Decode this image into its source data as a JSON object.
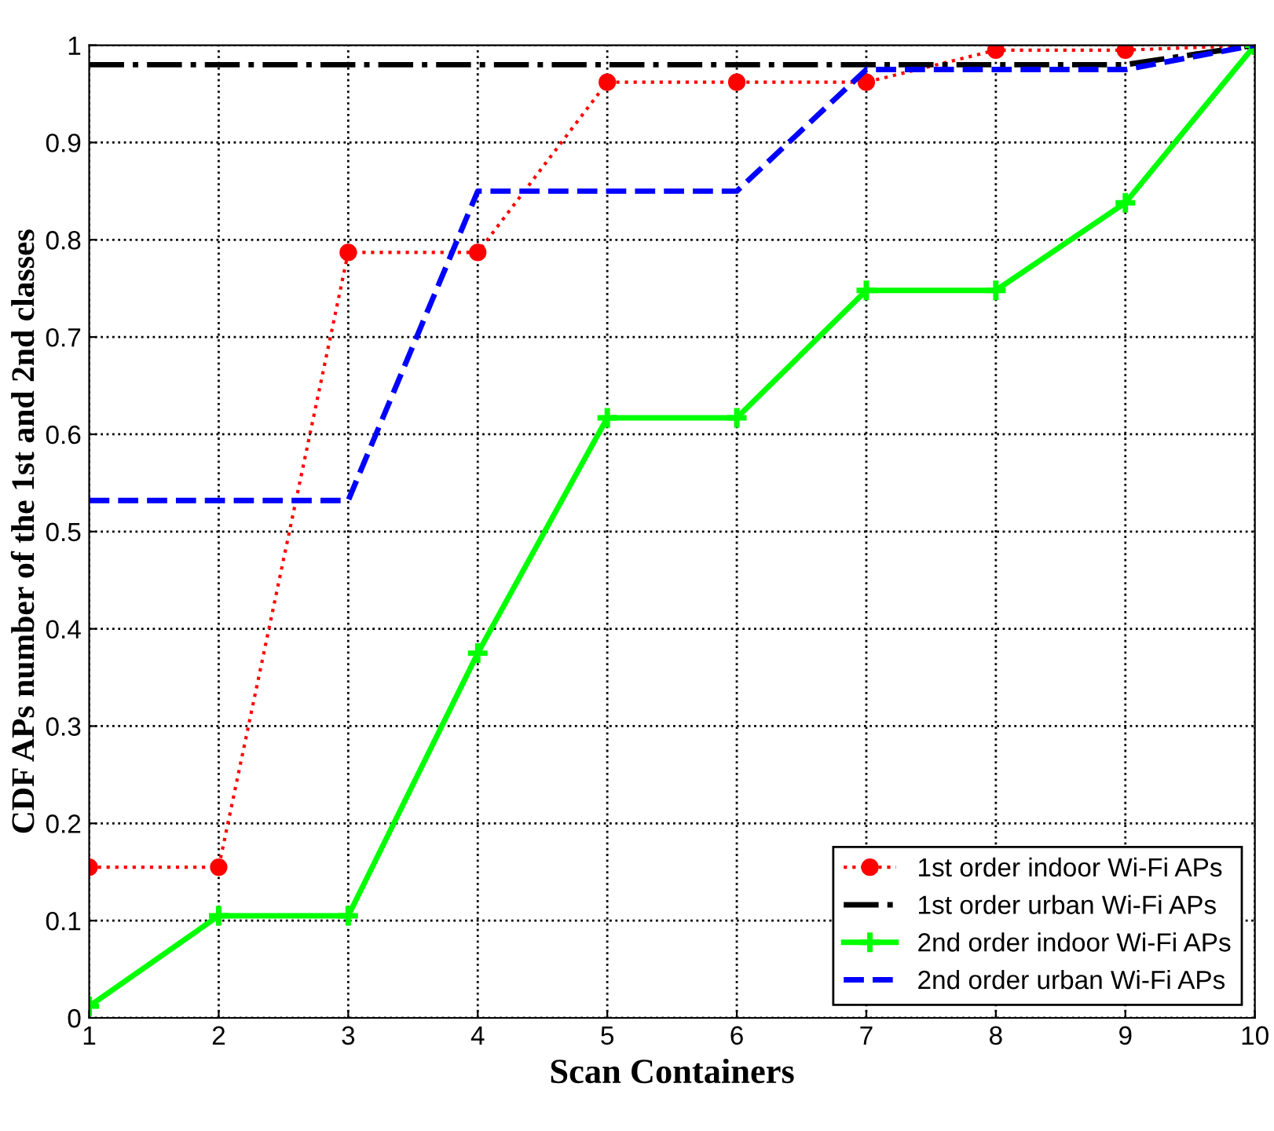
{
  "chart_data": {
    "type": "line",
    "xlabel": "Scan Containers",
    "ylabel": "CDF APs number of the 1st and 2nd classes",
    "x": [
      1,
      2,
      3,
      4,
      5,
      6,
      7,
      8,
      9,
      10
    ],
    "series": [
      {
        "name": "1st order indoor Wi-Fi APs",
        "color": "#ff0000",
        "line_style": "dotted",
        "marker": "circle",
        "values": [
          0.155,
          0.155,
          0.787,
          0.787,
          0.962,
          0.962,
          0.962,
          0.995,
          0.995,
          1.0
        ]
      },
      {
        "name": "1st order urban Wi-Fi APs",
        "color": "#000000",
        "line_style": "dashdot",
        "marker": "none",
        "values": [
          0.98,
          0.98,
          0.98,
          0.98,
          0.98,
          0.98,
          0.98,
          0.98,
          0.98,
          1.0
        ]
      },
      {
        "name": "2nd order indoor Wi-Fi APs",
        "color": "#00ff00",
        "line_style": "solid",
        "marker": "cross",
        "values": [
          0.012,
          0.105,
          0.105,
          0.375,
          0.617,
          0.617,
          0.748,
          0.748,
          0.838,
          1.0
        ]
      },
      {
        "name": "2nd order urban Wi-Fi APs",
        "color": "#0000ff",
        "line_style": "dashed",
        "marker": "none",
        "values": [
          0.532,
          0.532,
          0.532,
          0.85,
          0.85,
          0.85,
          0.975,
          0.975,
          0.975,
          1.0
        ]
      }
    ],
    "xlim": [
      1,
      10
    ],
    "xticks": [
      1,
      2,
      3,
      4,
      5,
      6,
      7,
      8,
      9,
      10
    ],
    "ylim": [
      0,
      1
    ],
    "yticks": [
      0,
      0.1,
      0.2,
      0.3,
      0.4,
      0.5,
      0.6,
      0.7,
      0.8,
      0.9,
      1
    ],
    "grid": true,
    "legend": "bottom right"
  }
}
